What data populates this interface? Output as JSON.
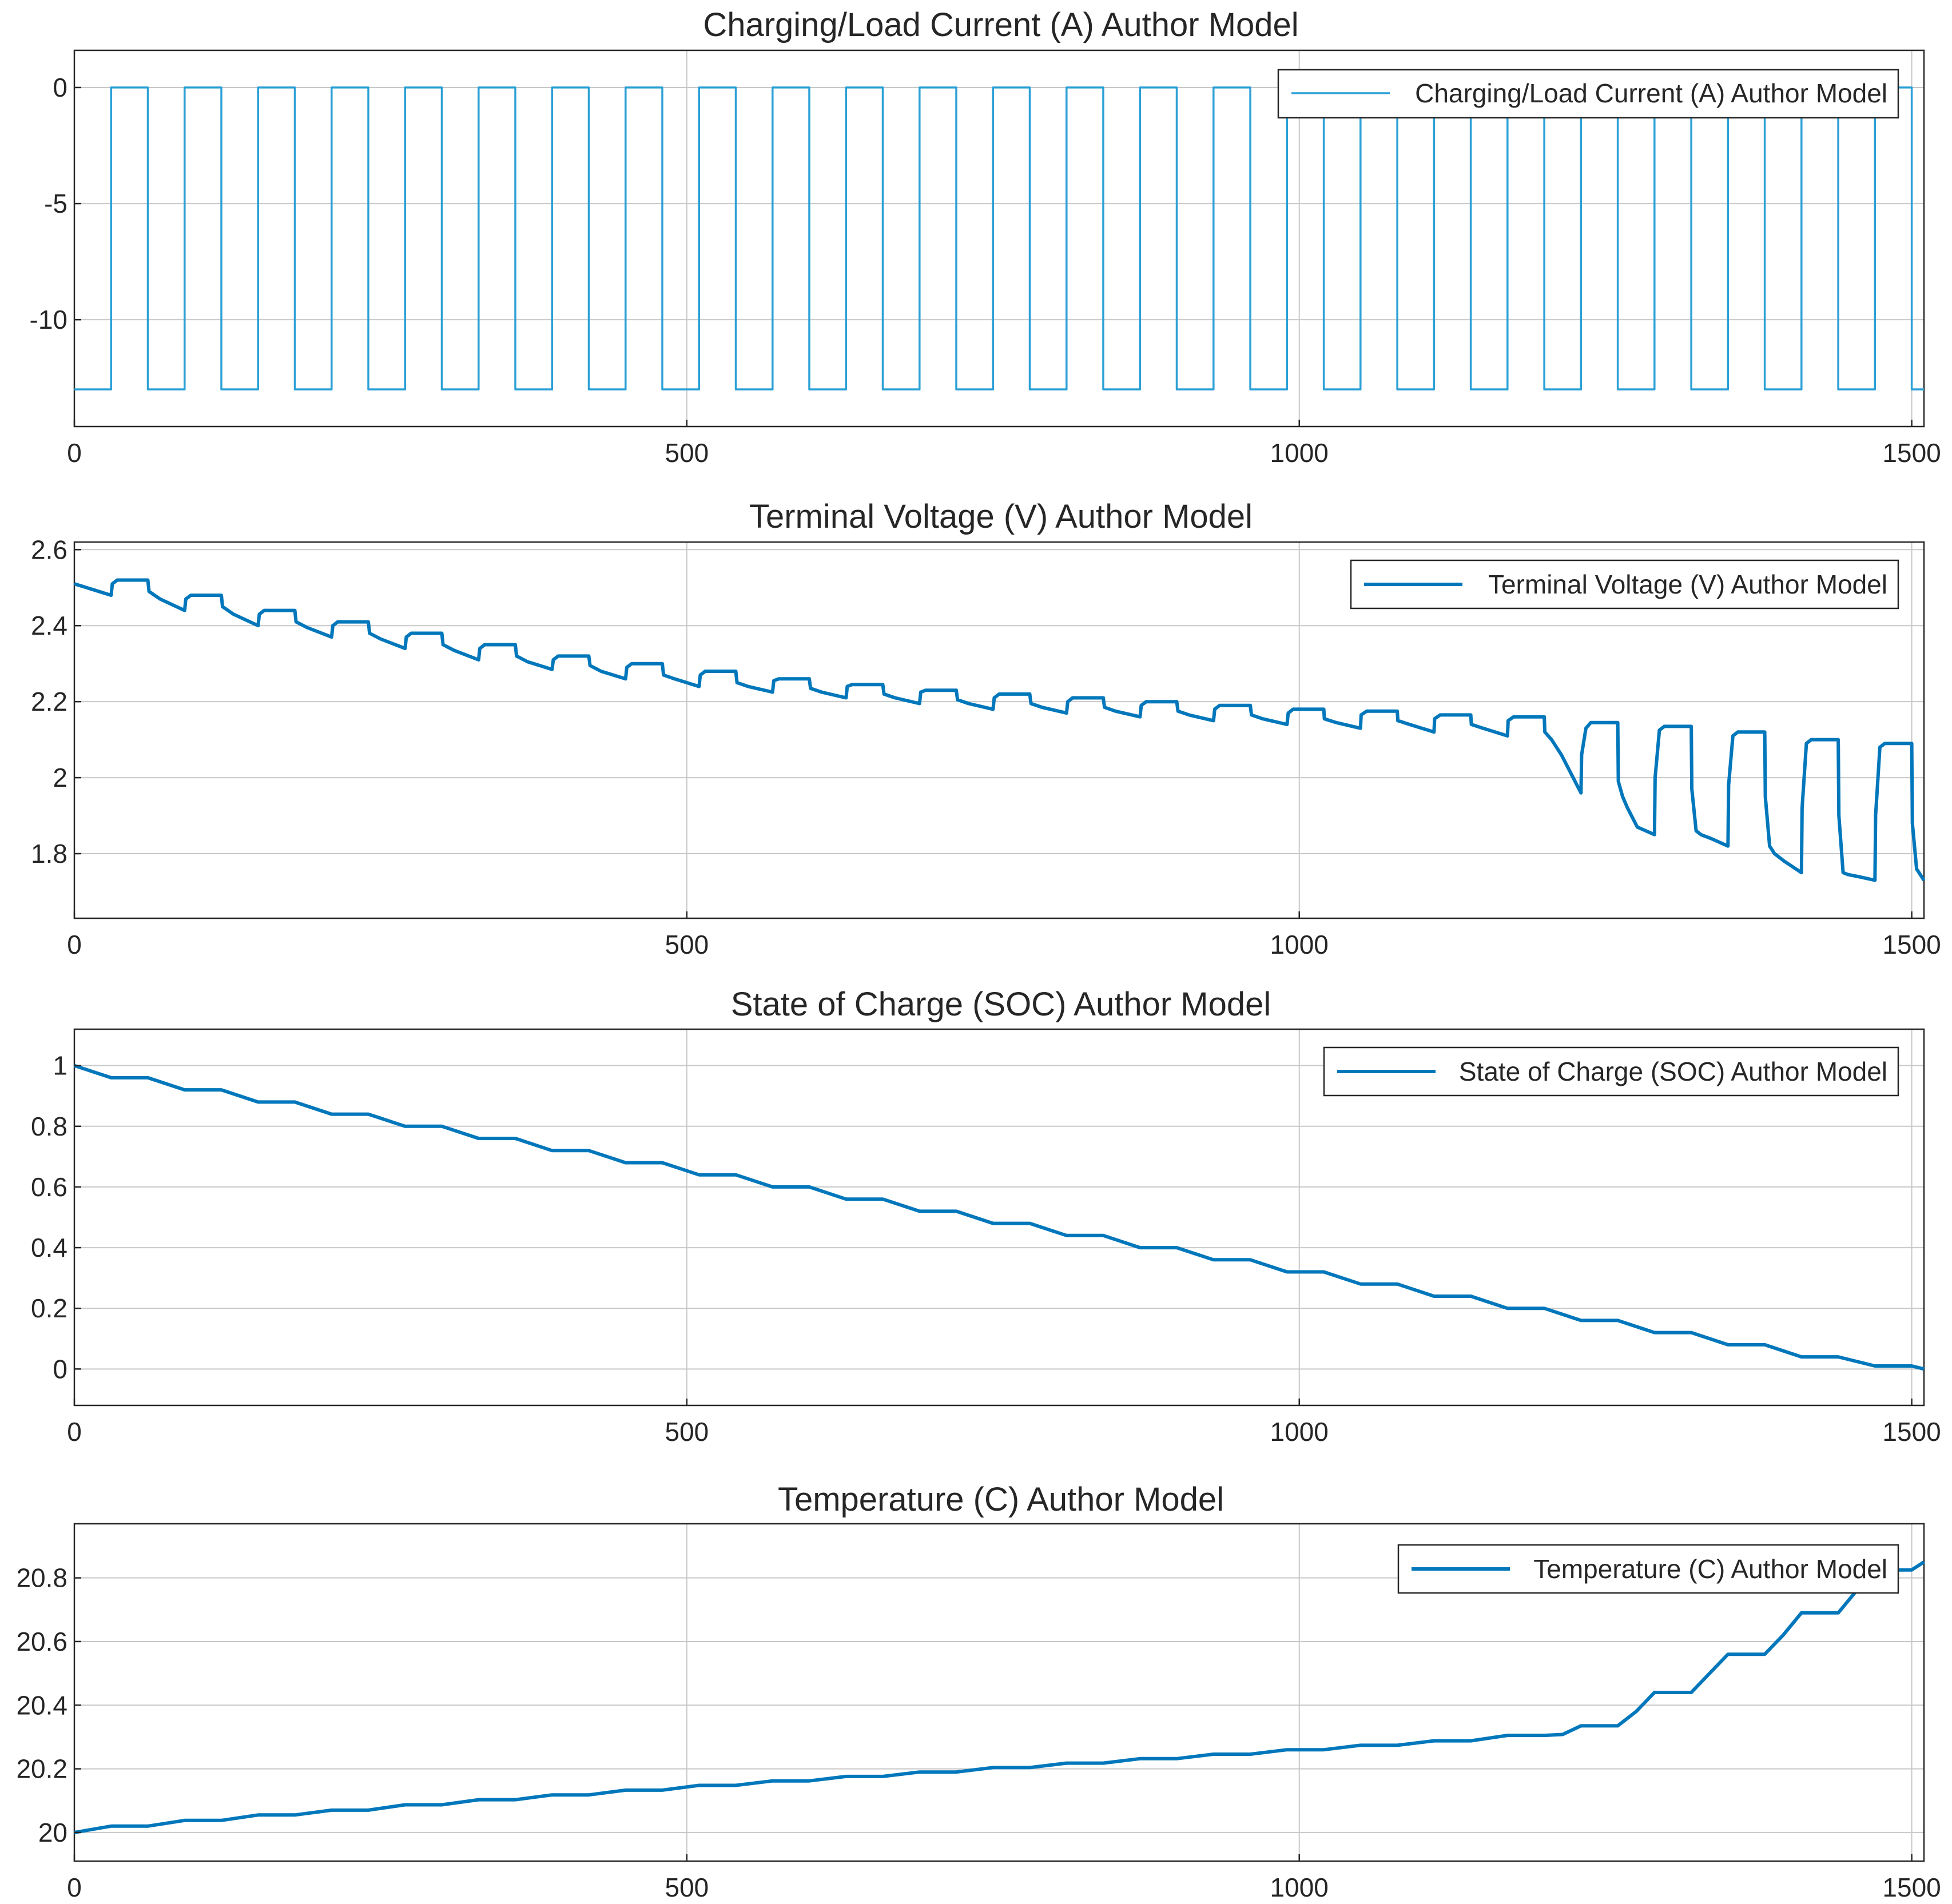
{
  "chart_data": [
    {
      "type": "line",
      "title": "Charging/Load Current (A) Author Model",
      "xlabel": "",
      "ylabel": "",
      "xlim": [
        0,
        1510
      ],
      "ylim": [
        -14.6,
        1.6
      ],
      "xticks": [
        0,
        500,
        1000,
        1500
      ],
      "yticks": [
        -10,
        -5,
        0
      ],
      "xtick_labels": [
        "0",
        "500",
        "1000",
        "1500"
      ],
      "ytick_labels": [
        "-10",
        "-5",
        "0"
      ],
      "grid": true,
      "legend_position": "top-right",
      "series": [
        {
          "name": "Charging/Load Current (A) Author Model",
          "color": "#2ba0d6",
          "width": "thin",
          "x": [
            0,
            30,
            30,
            60,
            60,
            90,
            90,
            120,
            120,
            150,
            150,
            180,
            180,
            210,
            210,
            240,
            240,
            270,
            270,
            300,
            300,
            330,
            330,
            360,
            360,
            390,
            390,
            420,
            420,
            450,
            450,
            480,
            480,
            510,
            510,
            540,
            540,
            570,
            570,
            600,
            600,
            630,
            630,
            660,
            660,
            690,
            690,
            720,
            720,
            750,
            750,
            780,
            780,
            810,
            810,
            840,
            840,
            870,
            870,
            900,
            900,
            930,
            930,
            960,
            960,
            990,
            990,
            1020,
            1020,
            1050,
            1050,
            1080,
            1080,
            1110,
            1110,
            1140,
            1140,
            1170,
            1170,
            1200,
            1200,
            1230,
            1230,
            1260,
            1260,
            1290,
            1290,
            1320,
            1320,
            1350,
            1350,
            1380,
            1380,
            1410,
            1410,
            1440,
            1440,
            1470,
            1470,
            1500,
            1500,
            1510
          ],
          "y": [
            -13,
            -13,
            0,
            0,
            -13,
            -13,
            0,
            0,
            -13,
            -13,
            0,
            0,
            -13,
            -13,
            0,
            0,
            -13,
            -13,
            0,
            0,
            -13,
            -13,
            0,
            0,
            -13,
            -13,
            0,
            0,
            -13,
            -13,
            0,
            0,
            -13,
            -13,
            0,
            0,
            -13,
            -13,
            0,
            0,
            -13,
            -13,
            0,
            0,
            -13,
            -13,
            0,
            0,
            -13,
            -13,
            0,
            0,
            -13,
            -13,
            0,
            0,
            -13,
            -13,
            0,
            0,
            -13,
            -13,
            0,
            0,
            -13,
            -13,
            0,
            0,
            -13,
            -13,
            0,
            0,
            -13,
            -13,
            0,
            0,
            -13,
            -13,
            0,
            0,
            -13,
            -13,
            0,
            0,
            -13,
            -13,
            0,
            0,
            -13,
            -13,
            0,
            0,
            -13,
            -13,
            0,
            0,
            -13,
            -13,
            0,
            0,
            -13,
            -13
          ]
        }
      ]
    },
    {
      "type": "line",
      "title": "Terminal Voltage (V) Author Model",
      "xlabel": "",
      "ylabel": "",
      "xlim": [
        0,
        1510
      ],
      "ylim": [
        1.63,
        2.62
      ],
      "xticks": [
        0,
        500,
        1000,
        1500
      ],
      "yticks": [
        1.8,
        2.0,
        2.2,
        2.4,
        2.6
      ],
      "xtick_labels": [
        "0",
        "500",
        "1000",
        "1500"
      ],
      "ytick_labels": [
        "1.8",
        "2",
        "2.2",
        "2.4",
        "2.6"
      ],
      "grid": true,
      "legend_position": "top-right",
      "series": [
        {
          "name": "Terminal Voltage (V) Author Model",
          "color": "#0077bb",
          "width": "thick",
          "x": [
            0,
            5,
            30,
            31,
            35,
            60,
            61,
            70,
            90,
            91,
            95,
            120,
            121,
            130,
            150,
            151,
            155,
            180,
            181,
            190,
            210,
            211,
            215,
            240,
            241,
            250,
            270,
            271,
            275,
            300,
            301,
            310,
            330,
            331,
            335,
            360,
            361,
            370,
            390,
            391,
            395,
            420,
            421,
            430,
            450,
            451,
            455,
            480,
            481,
            490,
            510,
            511,
            515,
            540,
            541,
            550,
            570,
            571,
            575,
            600,
            601,
            610,
            630,
            631,
            635,
            660,
            661,
            670,
            690,
            691,
            695,
            720,
            721,
            730,
            750,
            751,
            755,
            780,
            781,
            790,
            810,
            811,
            815,
            840,
            841,
            850,
            870,
            871,
            875,
            900,
            901,
            910,
            930,
            931,
            935,
            960,
            961,
            970,
            990,
            991,
            995,
            1020,
            1020.5,
            1030,
            1050,
            1050.5,
            1055,
            1080,
            1080.5,
            1090,
            1110,
            1110.5,
            1115,
            1140,
            1140.5,
            1150,
            1170,
            1170.5,
            1175,
            1200,
            1200.5,
            1206,
            1214,
            1230,
            1230.5,
            1234,
            1238,
            1260,
            1260.5,
            1264,
            1268,
            1276,
            1290,
            1290.5,
            1294,
            1298,
            1320,
            1320.5,
            1324,
            1328,
            1336,
            1350,
            1350.5,
            1354,
            1358,
            1380,
            1380.5,
            1384,
            1388,
            1396,
            1410,
            1410.5,
            1414,
            1418,
            1440,
            1440.5,
            1444,
            1448,
            1456,
            1470,
            1470.5,
            1474,
            1478,
            1500,
            1500.5,
            1504,
            1510
          ],
          "y": [
            2.51,
            2.505,
            2.48,
            2.51,
            2.52,
            2.52,
            2.49,
            2.47,
            2.44,
            2.47,
            2.48,
            2.48,
            2.45,
            2.43,
            2.4,
            2.43,
            2.44,
            2.44,
            2.41,
            2.395,
            2.37,
            2.4,
            2.41,
            2.41,
            2.38,
            2.365,
            2.34,
            2.37,
            2.38,
            2.38,
            2.35,
            2.335,
            2.31,
            2.34,
            2.35,
            2.35,
            2.32,
            2.305,
            2.285,
            2.31,
            2.32,
            2.32,
            2.295,
            2.28,
            2.26,
            2.29,
            2.3,
            2.3,
            2.27,
            2.26,
            2.24,
            2.27,
            2.28,
            2.28,
            2.25,
            2.24,
            2.225,
            2.255,
            2.26,
            2.26,
            2.235,
            2.225,
            2.21,
            2.24,
            2.245,
            2.245,
            2.22,
            2.21,
            2.195,
            2.225,
            2.23,
            2.23,
            2.205,
            2.195,
            2.18,
            2.21,
            2.22,
            2.22,
            2.195,
            2.185,
            2.17,
            2.2,
            2.21,
            2.21,
            2.185,
            2.175,
            2.16,
            2.19,
            2.2,
            2.2,
            2.175,
            2.165,
            2.15,
            2.18,
            2.19,
            2.19,
            2.165,
            2.155,
            2.14,
            2.17,
            2.18,
            2.18,
            2.155,
            2.145,
            2.13,
            2.165,
            2.175,
            2.175,
            2.15,
            2.14,
            2.12,
            2.155,
            2.165,
            2.165,
            2.14,
            2.13,
            2.11,
            2.15,
            2.16,
            2.16,
            2.12,
            2.1,
            2.06,
            1.96,
            2.06,
            2.13,
            2.145,
            2.145,
            1.99,
            1.95,
            1.92,
            1.87,
            1.85,
            2.0,
            2.125,
            2.135,
            2.135,
            1.97,
            1.86,
            1.85,
            1.84,
            1.82,
            1.98,
            2.11,
            2.12,
            2.12,
            1.95,
            1.82,
            1.8,
            1.78,
            1.75,
            1.92,
            2.09,
            2.1,
            2.1,
            1.9,
            1.75,
            1.745,
            1.74,
            1.73,
            1.9,
            2.08,
            2.09,
            2.09,
            1.88,
            1.76,
            1.73
          ]
        }
      ]
    },
    {
      "type": "line",
      "title": "State of Charge (SOC) Author Model",
      "xlabel": "",
      "ylabel": "",
      "xlim": [
        0,
        1510
      ],
      "ylim": [
        -0.12,
        1.12
      ],
      "xticks": [
        0,
        500,
        1000,
        1500
      ],
      "yticks": [
        0,
        0.2,
        0.4,
        0.6,
        0.8,
        1
      ],
      "xtick_labels": [
        "0",
        "500",
        "1000",
        "1500"
      ],
      "ytick_labels": [
        "0",
        "0.2",
        "0.4",
        "0.6",
        "0.8",
        "1"
      ],
      "grid": true,
      "legend_position": "top-right",
      "series": [
        {
          "name": "State of Charge (SOC) Author Model",
          "color": "#0077bb",
          "width": "thick",
          "x": [
            0,
            30,
            60,
            90,
            120,
            150,
            180,
            210,
            240,
            270,
            300,
            330,
            360,
            390,
            420,
            450,
            480,
            510,
            540,
            570,
            600,
            630,
            660,
            690,
            720,
            750,
            780,
            810,
            840,
            870,
            900,
            930,
            960,
            990,
            1020,
            1050,
            1080,
            1110,
            1140,
            1170,
            1200,
            1230,
            1260,
            1290,
            1320,
            1350,
            1380,
            1410,
            1440,
            1470,
            1500,
            1510
          ],
          "y": [
            1.0,
            0.96,
            0.96,
            0.92,
            0.92,
            0.88,
            0.88,
            0.84,
            0.84,
            0.8,
            0.8,
            0.76,
            0.76,
            0.72,
            0.72,
            0.68,
            0.68,
            0.64,
            0.64,
            0.6,
            0.6,
            0.56,
            0.56,
            0.52,
            0.52,
            0.48,
            0.48,
            0.44,
            0.44,
            0.4,
            0.4,
            0.36,
            0.36,
            0.32,
            0.32,
            0.28,
            0.28,
            0.24,
            0.24,
            0.2,
            0.2,
            0.16,
            0.16,
            0.12,
            0.12,
            0.08,
            0.08,
            0.04,
            0.04,
            0.01,
            0.01,
            0.0
          ]
        }
      ]
    },
    {
      "type": "line",
      "title": "Temperature (C) Author Model",
      "xlabel": "",
      "ylabel": "",
      "xlim": [
        0,
        1510
      ],
      "ylim": [
        19.91,
        20.97
      ],
      "xticks": [
        0,
        500,
        1000,
        1500
      ],
      "yticks": [
        20,
        20.2,
        20.4,
        20.6,
        20.8
      ],
      "xtick_labels": [
        "0",
        "500",
        "1000",
        "1500"
      ],
      "ytick_labels": [
        "20",
        "20.2",
        "20.4",
        "20.6",
        "20.8"
      ],
      "grid": true,
      "legend_position": "top-right",
      "series": [
        {
          "name": "Temperature (C) Author Model",
          "color": "#0077bb",
          "width": "thick",
          "x": [
            0,
            30,
            60,
            90,
            120,
            150,
            180,
            210,
            240,
            270,
            300,
            330,
            360,
            390,
            420,
            450,
            480,
            510,
            540,
            570,
            600,
            630,
            660,
            690,
            720,
            750,
            780,
            810,
            840,
            870,
            900,
            930,
            960,
            990,
            1020,
            1050,
            1080,
            1110,
            1140,
            1170,
            1200,
            1215,
            1230,
            1260,
            1275,
            1290,
            1320,
            1335,
            1350,
            1380,
            1395,
            1410,
            1440,
            1455,
            1470,
            1500,
            1510
          ],
          "y": [
            20.0,
            20.02,
            20.02,
            20.038,
            20.038,
            20.055,
            20.055,
            20.07,
            20.07,
            20.087,
            20.087,
            20.103,
            20.103,
            20.118,
            20.118,
            20.133,
            20.133,
            20.148,
            20.148,
            20.162,
            20.162,
            20.176,
            20.176,
            20.19,
            20.19,
            20.204,
            20.204,
            20.218,
            20.218,
            20.232,
            20.232,
            20.246,
            20.246,
            20.26,
            20.26,
            20.274,
            20.274,
            20.288,
            20.288,
            20.305,
            20.305,
            20.308,
            20.335,
            20.335,
            20.38,
            20.44,
            20.44,
            20.5,
            20.56,
            20.56,
            20.62,
            20.69,
            20.69,
            20.76,
            20.825,
            20.825,
            20.85
          ]
        }
      ]
    }
  ]
}
